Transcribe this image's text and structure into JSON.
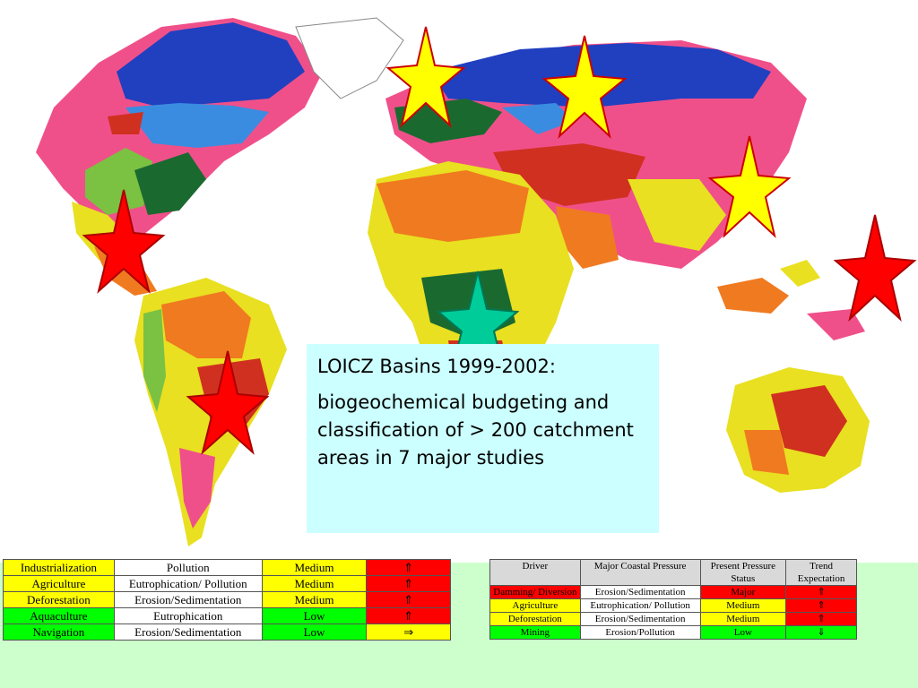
{
  "caption": {
    "title": "LOICZ Basins 1999-2002:",
    "body": "biogeochemical budgeting and classification of > 200 catchment areas in 7 major studies"
  },
  "map": {
    "colors": {
      "ocean": "#ffffff",
      "boreal_blue": "#2040c0",
      "light_blue": "#3a8ce0",
      "pink": "#f0508a",
      "green": "#7bc142",
      "dark_green": "#1a6a30",
      "yellow": "#e8e020",
      "orange": "#f07a20",
      "red": "#d03020",
      "teal": "#40c0b0"
    },
    "stars": [
      {
        "region": "Europe",
        "color": "#ffff00"
      },
      {
        "region": "Russia",
        "color": "#ffff00"
      },
      {
        "region": "East Asia",
        "color": "#ffff00"
      },
      {
        "region": "Pacific Islands",
        "color": "#ff0000"
      },
      {
        "region": "Central America",
        "color": "#ff0000"
      },
      {
        "region": "South America",
        "color": "#ff0000"
      },
      {
        "region": "Africa",
        "color": "#00cc99"
      }
    ]
  },
  "table_left": {
    "rows": [
      {
        "driver": "Industrialization",
        "pressure": "Pollution",
        "status": "Medium",
        "trend": "⇑",
        "driver_color": "#ffff00",
        "status_color": "#ffff00",
        "trend_color": "#ff0000"
      },
      {
        "driver": "Agriculture",
        "pressure": "Eutrophication/ Pollution",
        "status": "Medium",
        "trend": "⇑",
        "driver_color": "#ffff00",
        "status_color": "#ffff00",
        "trend_color": "#ff0000"
      },
      {
        "driver": "Deforestation",
        "pressure": "Erosion/Sedimentation",
        "status": "Medium",
        "trend": "⇑",
        "driver_color": "#ffff00",
        "status_color": "#ffff00",
        "trend_color": "#ff0000"
      },
      {
        "driver": "Aquaculture",
        "pressure": "Eutrophication",
        "status": "Low",
        "trend": "⇑",
        "driver_color": "#00ff00",
        "status_color": "#00ff00",
        "trend_color": "#ff0000"
      },
      {
        "driver": "Navigation",
        "pressure": "Erosion/Sedimentation",
        "status": "Low",
        "trend": "⇒",
        "driver_color": "#00ff00",
        "status_color": "#00ff00",
        "trend_color": "#ffff00"
      }
    ]
  },
  "table_right": {
    "headers": [
      "Driver",
      "Major Coastal Pressure",
      "Present Pressure Status",
      "Trend Expectation"
    ],
    "rows": [
      {
        "driver": "Damming/ Diversion",
        "pressure": "Erosion/Sedimentation",
        "status": "Major",
        "trend": "⇑",
        "driver_color": "#ff0000",
        "status_color": "#ff0000",
        "trend_color": "#ff0000"
      },
      {
        "driver": "Agriculture",
        "pressure": "Eutrophication/ Pollution",
        "status": "Medium",
        "trend": "⇑",
        "driver_color": "#ffff00",
        "status_color": "#ffff00",
        "trend_color": "#ff0000"
      },
      {
        "driver": "Deforestation",
        "pressure": "Erosion/Sedimentation",
        "status": "Medium",
        "trend": "⇑",
        "driver_color": "#ffff00",
        "status_color": "#ffff00",
        "trend_color": "#ff0000"
      },
      {
        "driver": "Mining",
        "pressure": "Erosion/Pollution",
        "status": "Low",
        "trend": "⇓",
        "driver_color": "#00ff00",
        "status_color": "#00ff00",
        "trend_color": "#00ff00"
      }
    ]
  }
}
